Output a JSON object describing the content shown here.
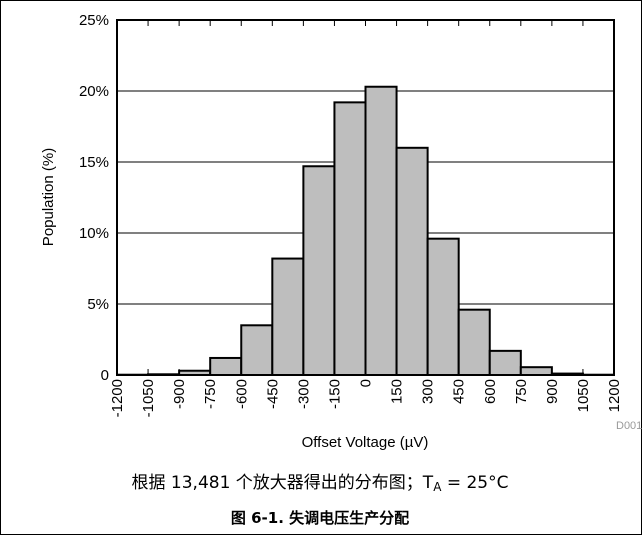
{
  "chart_data": {
    "type": "bar",
    "x_ticks": [
      "-1200",
      "-1050",
      "-900",
      "-750",
      "-600",
      "-450",
      "-300",
      "-150",
      "0",
      "150",
      "300",
      "450",
      "600",
      "750",
      "900",
      "1050",
      "1200"
    ],
    "bins": [
      [
        -1200,
        -1050
      ],
      [
        -1050,
        -900
      ],
      [
        -900,
        -750
      ],
      [
        -750,
        -600
      ],
      [
        -600,
        -450
      ],
      [
        -450,
        -300
      ],
      [
        -300,
        -150
      ],
      [
        -150,
        0
      ],
      [
        0,
        150
      ],
      [
        150,
        300
      ],
      [
        300,
        450
      ],
      [
        450,
        600
      ],
      [
        600,
        750
      ],
      [
        750,
        900
      ],
      [
        900,
        1050
      ],
      [
        1050,
        1200
      ]
    ],
    "values": [
      0.02,
      0.05,
      0.3,
      1.2,
      3.5,
      8.2,
      14.7,
      19.2,
      20.3,
      16.0,
      9.6,
      4.6,
      1.7,
      0.55,
      0.1,
      0.02
    ],
    "y_ticks": [
      "0",
      "5%",
      "10%",
      "15%",
      "20%",
      "25%"
    ],
    "ylim": [
      0,
      25
    ],
    "xlim": [
      -1200,
      1200
    ],
    "xlabel": "Offset Voltage (µV)",
    "ylabel": "Population (%)",
    "grid": "horizontal",
    "legend": "none",
    "bar_color": "#bebebe",
    "code_label": "D001"
  },
  "caption": {
    "note_text": "根据 13,481 个放大器得出的分布图；T",
    "note_sub": "A",
    "note_tail": " = 25°C",
    "figure_title": "图 6-1. 失调电压生产分配"
  }
}
